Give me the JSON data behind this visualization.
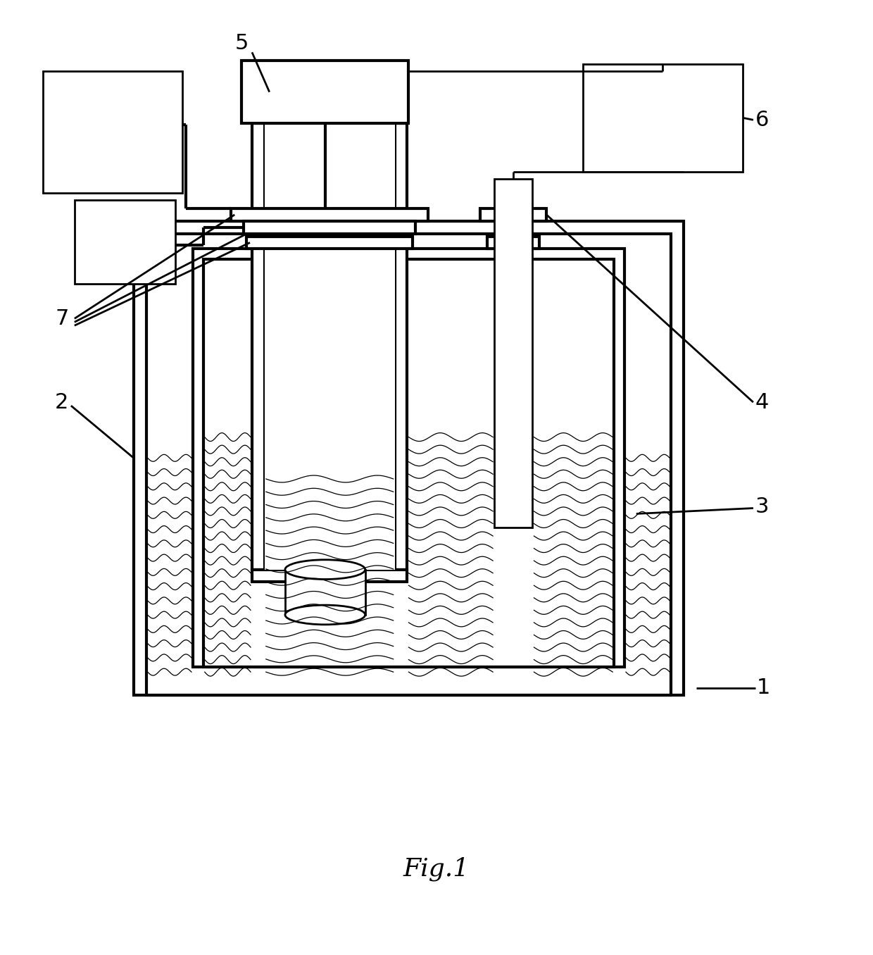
{
  "bg_color": "#ffffff",
  "lc": "#000000",
  "lw": 2.0,
  "tlw": 3.0,
  "fig_width": 12.4,
  "fig_height": 13.56,
  "title": "Fig.1",
  "title_fontsize": 26,
  "label_fontsize": 22
}
